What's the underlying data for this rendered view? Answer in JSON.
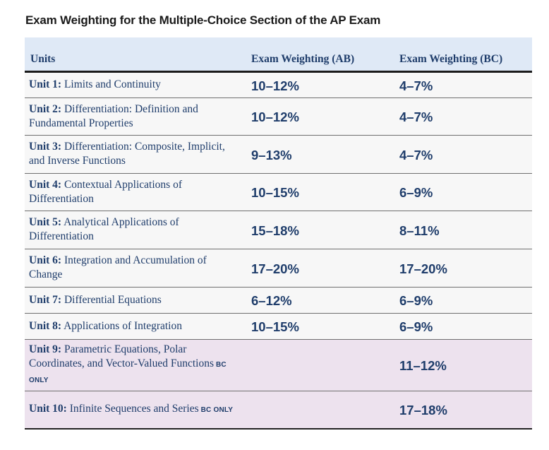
{
  "title": "Exam Weighting for the Multiple-Choice Section of the AP Exam",
  "headers": [
    "Units",
    "Exam Weighting (AB)",
    "Exam Weighting (BC)"
  ],
  "bc_only_label": "BC ONLY",
  "colors": {
    "header_bg": "#dfe9f6",
    "bc_row_bg": "#ede2ee",
    "text": "#1f3d6b"
  },
  "rows": [
    {
      "unit": "Unit 1:",
      "name": "Limits and Continuity",
      "ab": "10–12%",
      "bc": "4–7%"
    },
    {
      "unit": "Unit 2:",
      "name": "Differentiation: Definition and Fundamental Properties",
      "ab": "10–12%",
      "bc": "4–7%"
    },
    {
      "unit": "Unit 3:",
      "name": "Differentiation: Composite, Implicit, and Inverse Functions",
      "ab": "9–13%",
      "bc": "4–7%"
    },
    {
      "unit": "Unit 4:",
      "name": "Contextual Applications of Differentiation",
      "ab": "10–15%",
      "bc": "6–9%"
    },
    {
      "unit": "Unit 5:",
      "name": "Analytical Applications of Differentiation",
      "ab": "15–18%",
      "bc": "8–11%"
    },
    {
      "unit": "Unit 6:",
      "name": "Integration and Accumulation of Change",
      "ab": "17–20%",
      "bc": "17–20%"
    },
    {
      "unit": "Unit 7:",
      "name": "Differential Equations",
      "ab": "6–12%",
      "bc": "6–9%"
    },
    {
      "unit": "Unit 8:",
      "name": "Applications of Integration",
      "ab": "10–15%",
      "bc": "6–9%"
    },
    {
      "unit": "Unit 9:",
      "name": "Parametric Equations, Polar Coordinates, and Vector-Valued Functions",
      "ab": "",
      "bc": "11–12%"
    },
    {
      "unit": "Unit 10:",
      "name": "Infinite Sequences and Series",
      "ab": "",
      "bc": "17–18%"
    }
  ]
}
